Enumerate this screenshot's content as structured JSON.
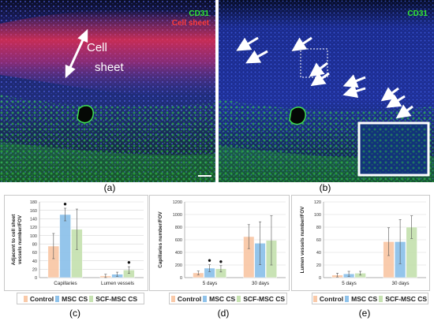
{
  "panel_a": {
    "label_cd31": "CD31",
    "label_cell_sheet": "Cell sheet",
    "arrow_text_line1": "Cell",
    "arrow_text_line2": "sheet",
    "caption": "(a)"
  },
  "panel_b": {
    "label_cd31": "CD31",
    "caption": "(b)"
  },
  "colors": {
    "control": "#f9c9a8",
    "msc_cs": "#8fc2ea",
    "scf_msc_cs": "#c7e2b2",
    "cd31_green": "#33e833",
    "cell_sheet_red": "#ff3b3b"
  },
  "legend": {
    "control": "Control",
    "msc_cs": "MSC CS",
    "scf_msc_cs": "SCF-MSC CS"
  },
  "chart_data": [
    {
      "id": "c",
      "caption": "(c)",
      "type": "bar",
      "ylabel_line1": "Adjacent to cell sheet",
      "ylabel_line2": "vessels number/FOV",
      "ylim": [
        0,
        180
      ],
      "yticks": [
        "0",
        "20",
        "40",
        "60",
        "80",
        "100",
        "120",
        "140",
        "160",
        "180"
      ],
      "categories": [
        "Capillaries",
        "Lumen vessels"
      ],
      "series": [
        {
          "name": "Control",
          "values": [
            75,
            4
          ],
          "errors": [
            30,
            4
          ]
        },
        {
          "name": "MSC CS",
          "values": [
            150,
            8
          ],
          "errors": [
            15,
            5
          ]
        },
        {
          "name": "SCF-MSC CS",
          "values": [
            115,
            18
          ],
          "errors": [
            48,
            8
          ]
        }
      ],
      "significance": [
        [
          1,
          0
        ],
        [
          2,
          1
        ]
      ],
      "marker": "●"
    },
    {
      "id": "d",
      "caption": "(d)",
      "type": "bar",
      "ylabel_line1": "Capillaries number/FOV",
      "ylabel_line2": "",
      "ylim": [
        0,
        1200
      ],
      "yticks": [
        "0",
        "200",
        "400",
        "600",
        "800",
        "1000",
        "1200"
      ],
      "categories": [
        "5 days",
        "30 days"
      ],
      "series": [
        {
          "name": "Control",
          "values": [
            75,
            650
          ],
          "errors": [
            30,
            190
          ]
        },
        {
          "name": "MSC CS",
          "values": [
            150,
            545
          ],
          "errors": [
            55,
            340
          ]
        },
        {
          "name": "SCF-MSC CS",
          "values": [
            140,
            590
          ],
          "errors": [
            50,
            390
          ]
        }
      ],
      "significance": [
        [
          1,
          0
        ],
        [
          2,
          0
        ]
      ],
      "marker": "●"
    },
    {
      "id": "e",
      "caption": "(e)",
      "type": "bar",
      "ylabel_line1": "Lumen vessels number/FOV",
      "ylabel_line2": "",
      "ylim": [
        0,
        120
      ],
      "yticks": [
        "0",
        "20",
        "40",
        "60",
        "80",
        "100",
        "120"
      ],
      "categories": [
        "5 days",
        "30 days"
      ],
      "series": [
        {
          "name": "Control",
          "values": [
            4,
            57
          ],
          "errors": [
            3,
            22
          ]
        },
        {
          "name": "MSC CS",
          "values": [
            6,
            57
          ],
          "errors": [
            4,
            35
          ]
        },
        {
          "name": "SCF-MSC CS",
          "values": [
            7,
            80
          ],
          "errors": [
            3,
            18
          ]
        }
      ],
      "significance": [],
      "marker": "●"
    }
  ]
}
